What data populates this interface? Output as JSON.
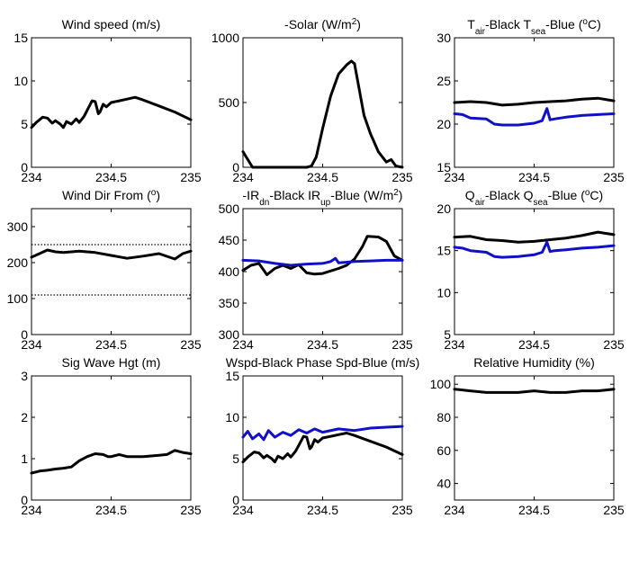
{
  "colors": {
    "black_series": "#000000",
    "blue_series": "#1010c8",
    "axes": "#000000"
  },
  "chart_data": [
    {
      "type": "line",
      "title": "Wind speed (m/s)",
      "xlim": [
        234,
        235
      ],
      "ylim": [
        0,
        15
      ],
      "xticks": [
        "234",
        "234.5",
        "235"
      ],
      "yticks": [
        "0",
        "5",
        "10",
        "15"
      ],
      "series": [
        {
          "color": "black",
          "x": [
            234.0,
            234.03,
            234.07,
            234.1,
            234.13,
            234.15,
            234.18,
            234.2,
            234.22,
            234.25,
            234.28,
            234.3,
            234.33,
            234.35,
            234.38,
            234.4,
            234.42,
            234.43,
            234.45,
            234.47,
            234.5,
            234.55,
            234.6,
            234.65,
            234.7,
            234.8,
            234.9,
            235.0
          ],
          "values": [
            4.6,
            5.2,
            5.8,
            5.7,
            5.1,
            5.4,
            5.0,
            4.6,
            5.3,
            5.0,
            5.6,
            5.2,
            5.9,
            6.6,
            7.7,
            7.6,
            6.2,
            6.4,
            7.3,
            7.0,
            7.5,
            7.7,
            7.9,
            8.1,
            7.8,
            7.1,
            6.4,
            5.5
          ]
        }
      ]
    },
    {
      "type": "line",
      "title": "-Solar (W/m",
      "title_sup": "2",
      "title_tail": ")",
      "xlim": [
        234,
        235
      ],
      "ylim": [
        0,
        1000
      ],
      "xticks": [
        "234",
        "234.5",
        "235"
      ],
      "yticks": [
        "0",
        "500",
        "1000"
      ],
      "series": [
        {
          "color": "black",
          "x": [
            234.0,
            234.03,
            234.06,
            234.1,
            234.2,
            234.3,
            234.4,
            234.43,
            234.46,
            234.5,
            234.55,
            234.6,
            234.65,
            234.68,
            234.7,
            234.73,
            234.76,
            234.8,
            234.85,
            234.9,
            234.93,
            234.96,
            235.0
          ],
          "values": [
            120,
            60,
            0,
            0,
            0,
            0,
            0,
            10,
            80,
            300,
            550,
            720,
            790,
            820,
            800,
            600,
            400,
            260,
            120,
            40,
            60,
            10,
            0
          ]
        }
      ]
    },
    {
      "type": "line",
      "title_parts": [
        "T",
        "air",
        "-Black  T",
        "sea",
        "-Blue (",
        "o",
        "C)"
      ],
      "xlim": [
        234,
        235
      ],
      "ylim": [
        15,
        30
      ],
      "xticks": [
        "234",
        "234.5",
        "235"
      ],
      "yticks": [
        "15",
        "20",
        "25",
        "30"
      ],
      "series": [
        {
          "color": "black",
          "x": [
            234.0,
            234.1,
            234.2,
            234.3,
            234.4,
            234.5,
            234.6,
            234.7,
            234.8,
            234.9,
            235.0
          ],
          "values": [
            22.5,
            22.6,
            22.5,
            22.2,
            22.3,
            22.5,
            22.6,
            22.7,
            22.9,
            23.0,
            22.7
          ]
        },
        {
          "color": "blue",
          "x": [
            234.0,
            234.05,
            234.1,
            234.2,
            234.25,
            234.3,
            234.4,
            234.5,
            234.55,
            234.58,
            234.6,
            234.63,
            234.7,
            234.8,
            234.9,
            235.0
          ],
          "values": [
            21.2,
            21.1,
            20.7,
            20.6,
            20.0,
            19.9,
            19.9,
            20.1,
            20.4,
            21.8,
            20.5,
            20.6,
            20.8,
            21.0,
            21.1,
            21.2
          ]
        }
      ]
    },
    {
      "type": "line",
      "title": "Wind Dir From (",
      "title_sup": "o",
      "title_tail": ")",
      "xlim": [
        234,
        235
      ],
      "ylim": [
        0,
        350
      ],
      "xticks": [
        "234",
        "234.5",
        "235"
      ],
      "yticks": [
        "0",
        "100",
        "200",
        "300"
      ],
      "reference_lines": [
        250,
        110
      ],
      "series": [
        {
          "color": "black",
          "x": [
            234.0,
            234.05,
            234.1,
            234.15,
            234.2,
            234.3,
            234.4,
            234.5,
            234.6,
            234.7,
            234.8,
            234.9,
            234.95,
            235.0
          ],
          "values": [
            215,
            225,
            235,
            230,
            228,
            232,
            228,
            220,
            212,
            218,
            225,
            210,
            225,
            232
          ]
        }
      ]
    },
    {
      "type": "line",
      "title_parts": [
        "-IR",
        "dn",
        "-Black  IR",
        "up",
        "-Blue (W/m",
        "2",
        ")"
      ],
      "xlim": [
        234,
        235
      ],
      "ylim": [
        300,
        500
      ],
      "xticks": [
        "234",
        "234.5",
        "235"
      ],
      "yticks": [
        "300",
        "350",
        "400",
        "450",
        "500"
      ],
      "series": [
        {
          "color": "black",
          "x": [
            234.0,
            234.05,
            234.1,
            234.15,
            234.2,
            234.25,
            234.3,
            234.35,
            234.4,
            234.45,
            234.5,
            234.6,
            234.65,
            234.7,
            234.75,
            234.78,
            234.85,
            234.9,
            234.95,
            235.0
          ],
          "values": [
            402,
            410,
            413,
            395,
            405,
            410,
            405,
            411,
            398,
            396,
            397,
            405,
            410,
            420,
            440,
            456,
            455,
            448,
            425,
            418
          ]
        },
        {
          "color": "blue",
          "x": [
            234.0,
            234.1,
            234.2,
            234.3,
            234.4,
            234.5,
            234.55,
            234.58,
            234.6,
            234.7,
            234.8,
            234.9,
            235.0
          ],
          "values": [
            418,
            417,
            413,
            410,
            412,
            413,
            416,
            421,
            414,
            416,
            417,
            418,
            418
          ]
        }
      ]
    },
    {
      "type": "line",
      "title_parts": [
        "Q",
        "air",
        "-Black  Q",
        "sea",
        "-Blue (",
        "o",
        "C)"
      ],
      "xlim": [
        234,
        235
      ],
      "ylim": [
        5,
        20
      ],
      "xticks": [
        "234",
        "234.5",
        "235"
      ],
      "yticks": [
        "5",
        "10",
        "15",
        "20"
      ],
      "series": [
        {
          "color": "black",
          "x": [
            234.0,
            234.1,
            234.2,
            234.3,
            234.4,
            234.5,
            234.6,
            234.7,
            234.8,
            234.9,
            235.0
          ],
          "values": [
            16.6,
            16.7,
            16.3,
            16.2,
            16.0,
            16.1,
            16.3,
            16.5,
            16.8,
            17.2,
            16.9
          ]
        },
        {
          "color": "blue",
          "x": [
            234.0,
            234.05,
            234.1,
            234.2,
            234.25,
            234.3,
            234.4,
            234.5,
            234.55,
            234.58,
            234.6,
            234.63,
            234.7,
            234.8,
            234.9,
            235.0
          ],
          "values": [
            15.4,
            15.3,
            15.0,
            14.8,
            14.3,
            14.2,
            14.3,
            14.5,
            14.8,
            16.0,
            14.9,
            15.0,
            15.1,
            15.3,
            15.4,
            15.6
          ]
        }
      ]
    },
    {
      "type": "line",
      "title": "Sig Wave Hgt (m)",
      "xlim": [
        234,
        235
      ],
      "ylim": [
        0,
        3
      ],
      "xticks": [
        "234",
        "234.5",
        "235"
      ],
      "yticks": [
        "0",
        "1",
        "2",
        "3"
      ],
      "series": [
        {
          "color": "black",
          "x": [
            234.0,
            234.05,
            234.1,
            234.15,
            234.2,
            234.25,
            234.3,
            234.35,
            234.4,
            234.45,
            234.48,
            234.5,
            234.55,
            234.6,
            234.7,
            234.8,
            234.85,
            234.9,
            234.95,
            235.0
          ],
          "values": [
            0.65,
            0.7,
            0.72,
            0.75,
            0.77,
            0.8,
            0.95,
            1.05,
            1.12,
            1.1,
            1.05,
            1.05,
            1.1,
            1.05,
            1.05,
            1.08,
            1.1,
            1.2,
            1.15,
            1.12
          ]
        }
      ]
    },
    {
      "type": "line",
      "title": "Wspd-Black  Phase Spd-Blue (m/s)",
      "xlim": [
        234,
        235
      ],
      "ylim": [
        0,
        15
      ],
      "xticks": [
        "234",
        "234.5",
        "235"
      ],
      "yticks": [
        "0",
        "5",
        "10",
        "15"
      ],
      "series": [
        {
          "color": "black",
          "x": [
            234.0,
            234.03,
            234.07,
            234.1,
            234.13,
            234.15,
            234.18,
            234.2,
            234.22,
            234.25,
            234.28,
            234.3,
            234.33,
            234.35,
            234.38,
            234.4,
            234.42,
            234.43,
            234.45,
            234.47,
            234.5,
            234.55,
            234.6,
            234.65,
            234.7,
            234.8,
            234.9,
            235.0
          ],
          "values": [
            4.6,
            5.2,
            5.8,
            5.7,
            5.1,
            5.4,
            5.0,
            4.6,
            5.3,
            5.0,
            5.6,
            5.2,
            5.9,
            6.6,
            7.7,
            7.6,
            6.2,
            6.4,
            7.3,
            7.0,
            7.5,
            7.7,
            7.9,
            8.1,
            7.8,
            7.1,
            6.4,
            5.5
          ]
        },
        {
          "color": "blue",
          "x": [
            234.0,
            234.03,
            234.06,
            234.1,
            234.13,
            234.16,
            234.2,
            234.25,
            234.3,
            234.35,
            234.4,
            234.45,
            234.5,
            234.6,
            234.7,
            234.8,
            234.9,
            235.0
          ],
          "values": [
            7.6,
            8.3,
            7.4,
            8.0,
            7.3,
            8.4,
            7.6,
            8.2,
            7.8,
            8.5,
            8.1,
            8.6,
            8.2,
            8.6,
            8.4,
            8.7,
            8.8,
            8.9
          ]
        }
      ]
    },
    {
      "type": "line",
      "title": "Relative Humidity (%)",
      "xlim": [
        234,
        235
      ],
      "ylim": [
        30,
        105
      ],
      "xticks": [
        "234",
        "234.5",
        "235"
      ],
      "yticks": [
        "40",
        "60",
        "80",
        "100"
      ],
      "series": [
        {
          "color": "black",
          "x": [
            234.0,
            234.1,
            234.2,
            234.3,
            234.4,
            234.5,
            234.6,
            234.7,
            234.8,
            234.9,
            235.0
          ],
          "values": [
            97,
            96,
            95,
            95,
            95,
            96,
            95,
            95,
            96,
            96,
            97
          ]
        }
      ]
    }
  ]
}
